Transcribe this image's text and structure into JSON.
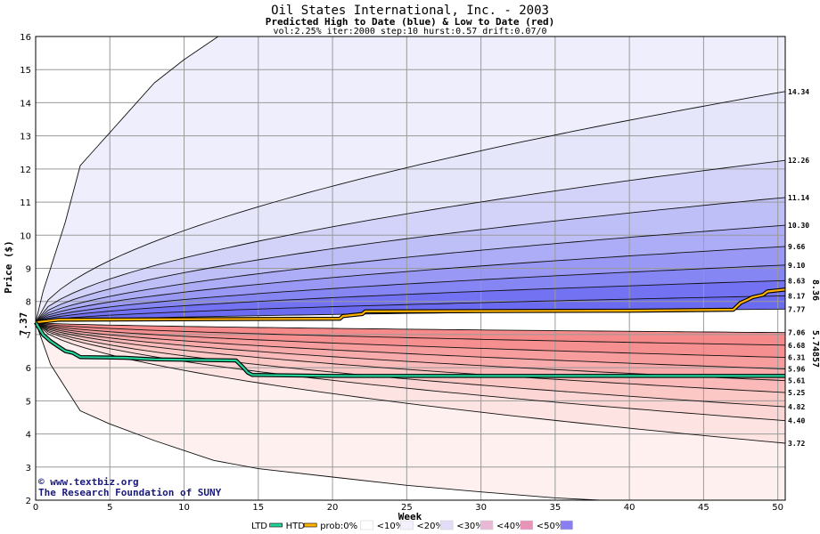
{
  "chart_data": {
    "type": "area",
    "title": "Oil States International, Inc. - 2003",
    "subtitle": "Predicted High to Date (blue) &  Low to Date (red)",
    "params": "vol:2.25% iter:2000 step:10 hurst:0.57 drift:0.07/0",
    "xlabel": "Week",
    "ylabel": "Price ($)",
    "xlim": [
      0,
      50.5
    ],
    "ylim": [
      2,
      16
    ],
    "xticks": [
      0,
      5,
      10,
      15,
      20,
      25,
      30,
      35,
      40,
      45,
      50
    ],
    "yticks": [
      2,
      3,
      4,
      5,
      6,
      7,
      8,
      9,
      10,
      11,
      12,
      13,
      14,
      15,
      16
    ],
    "grid": true,
    "start_price": 7.37,
    "start_label": "7.37",
    "final_high": 8.36,
    "final_high_label": "8.36",
    "final_low": 5.74857,
    "final_low_label": "5.74857",
    "high_percentiles": [
      {
        "end": 14.34,
        "label": "14.34"
      },
      {
        "end": 12.26,
        "label": "12.26"
      },
      {
        "end": 11.14,
        "label": "11.14"
      },
      {
        "end": 10.3,
        "label": "10.30"
      },
      {
        "end": 9.66,
        "label": "9.66"
      },
      {
        "end": 9.1,
        "label": "9.10"
      },
      {
        "end": 8.63,
        "label": "8.63"
      },
      {
        "end": 8.17,
        "label": "8.17"
      },
      {
        "end": 7.77,
        "label": "7.77"
      }
    ],
    "low_percentiles": [
      {
        "end": 7.06,
        "label": "7.06"
      },
      {
        "end": 6.68,
        "label": "6.68"
      },
      {
        "end": 6.31,
        "label": "6.31"
      },
      {
        "end": 5.96,
        "label": "5.96"
      },
      {
        "end": 5.61,
        "label": "5.61"
      },
      {
        "end": 5.25,
        "label": "5.25"
      },
      {
        "end": 4.82,
        "label": "4.82"
      },
      {
        "end": 4.4,
        "label": "4.40"
      },
      {
        "end": 3.72,
        "label": "3.72"
      }
    ],
    "outer_high_curve": {
      "x": [
        0,
        0.5,
        1,
        2,
        3,
        4,
        5,
        6,
        8,
        10,
        12.3
      ],
      "y": [
        7.37,
        8.3,
        9.0,
        10.4,
        12.1,
        12.6,
        13.1,
        13.6,
        14.6,
        15.3,
        16.0
      ]
    },
    "outer_low_curve": {
      "x": [
        0,
        1,
        2,
        3,
        5,
        8,
        10,
        12,
        15,
        20,
        25,
        30,
        35,
        38
      ],
      "y": [
        7.37,
        6.1,
        5.4,
        4.7,
        4.3,
        3.8,
        3.5,
        3.2,
        2.95,
        2.7,
        2.45,
        2.25,
        2.07,
        2.0
      ]
    },
    "series": [
      {
        "name": "HTD",
        "color": "#ffb300",
        "x": [
          0,
          1,
          1.6,
          20.5,
          20.7,
          22,
          22.2,
          40,
          47,
          47.5,
          48,
          48.3,
          49,
          49.3,
          50.5
        ],
        "y": [
          7.37,
          7.42,
          7.45,
          7.48,
          7.56,
          7.62,
          7.7,
          7.72,
          7.75,
          7.96,
          8.06,
          8.13,
          8.2,
          8.3,
          8.36
        ]
      },
      {
        "name": "LTD",
        "color": "#22d39a",
        "x": [
          0,
          0.5,
          1,
          1.5,
          2,
          2.5,
          3,
          6,
          8,
          13.5,
          14,
          14.3,
          14.6,
          20,
          50.5
        ],
        "y": [
          7.37,
          7.0,
          6.8,
          6.65,
          6.5,
          6.45,
          6.32,
          6.3,
          6.25,
          6.22,
          6.0,
          5.85,
          5.78,
          5.75,
          5.75
        ]
      }
    ],
    "legend": {
      "placement": "bottom",
      "items": [
        {
          "label": "LTD",
          "color": "#22d39a",
          "kind": "line"
        },
        {
          "label": "HTD",
          "color": "#ffb300",
          "kind": "line"
        },
        {
          "label": "prob:0%",
          "color": "#ffffff",
          "kind": "swatch"
        },
        {
          "label": "<10%",
          "color": "#f4f0fb",
          "kind": "swatch"
        },
        {
          "label": "<20%",
          "color": "#e4dcf6",
          "kind": "swatch"
        },
        {
          "label": "<30%",
          "color": "#e7b9d6",
          "kind": "swatch"
        },
        {
          "label": "<40%",
          "color": "#e894b9",
          "kind": "swatch"
        },
        {
          "label": "<50%",
          "color": "#8a7ff0",
          "kind": "swatch"
        }
      ]
    },
    "colors": {
      "blue_outer": "#eeeefc",
      "blue_inner": "#6b6bf2",
      "red_outer": "#fdf0ef",
      "red_inner": "#f68a8a",
      "grid": "#9a9a9a",
      "start_label": "#1b7a55",
      "high_label": "#b28a00",
      "low_label": "#1b9a6a"
    },
    "credits": [
      "© www.textbiz.org",
      "The Research Foundation of SUNY"
    ]
  }
}
